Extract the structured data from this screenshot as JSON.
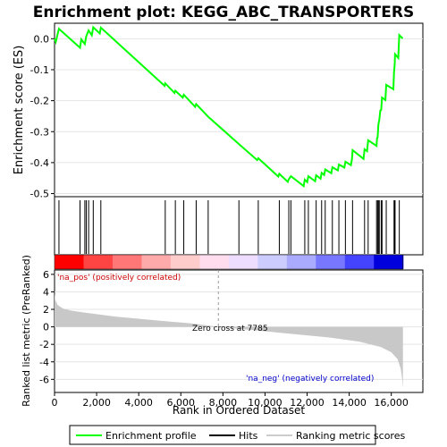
{
  "chart_data": {
    "type": "line",
    "title": "Enrichment plot: KEGG_ABC_TRANSPORTERS",
    "es_panel": {
      "ylabel": "Enrichment score (ES)",
      "yticks": [
        "0.0",
        "-0.1",
        "-0.2",
        "-0.3",
        "-0.4",
        "-0.5"
      ],
      "ylim": [
        -0.51,
        0.05
      ],
      "series_color": "#00ff00",
      "points": [
        [
          0,
          0
        ],
        [
          60,
          -0.01
        ],
        [
          210,
          0.032
        ],
        [
          1210,
          -0.029
        ],
        [
          1270,
          -0.002
        ],
        [
          1440,
          -0.017
        ],
        [
          1510,
          0.008
        ],
        [
          1620,
          0.027
        ],
        [
          1770,
          0.011
        ],
        [
          1840,
          0.037
        ],
        [
          2150,
          0.017
        ],
        [
          2200,
          0.036
        ],
        [
          5230,
          -0.152
        ],
        [
          5260,
          -0.144
        ],
        [
          5700,
          -0.175
        ],
        [
          5740,
          -0.168
        ],
        [
          6090,
          -0.19
        ],
        [
          6140,
          -0.181
        ],
        [
          6680,
          -0.22
        ],
        [
          6730,
          -0.211
        ],
        [
          7300,
          -0.252
        ],
        [
          8760,
          -0.34
        ],
        [
          9630,
          -0.392
        ],
        [
          9680,
          -0.386
        ],
        [
          10630,
          -0.445
        ],
        [
          10680,
          -0.436
        ],
        [
          11080,
          -0.462
        ],
        [
          11130,
          -0.454
        ],
        [
          11230,
          -0.444
        ],
        [
          11840,
          -0.476
        ],
        [
          11890,
          -0.455
        ],
        [
          12010,
          -0.463
        ],
        [
          12060,
          -0.444
        ],
        [
          12380,
          -0.46
        ],
        [
          12430,
          -0.441
        ],
        [
          12640,
          -0.452
        ],
        [
          12690,
          -0.433
        ],
        [
          12810,
          -0.44
        ],
        [
          12860,
          -0.422
        ],
        [
          13150,
          -0.434
        ],
        [
          13200,
          -0.415
        ],
        [
          13460,
          -0.425
        ],
        [
          13510,
          -0.406
        ],
        [
          13770,
          -0.416
        ],
        [
          13820,
          -0.397
        ],
        [
          14080,
          -0.408
        ],
        [
          14130,
          -0.389
        ],
        [
          14160,
          -0.36
        ],
        [
          14680,
          -0.388
        ],
        [
          14730,
          -0.357
        ],
        [
          14850,
          -0.363
        ],
        [
          14900,
          -0.328
        ],
        [
          15300,
          -0.346
        ],
        [
          15320,
          -0.322
        ],
        [
          15350,
          -0.318
        ],
        [
          15390,
          -0.276
        ],
        [
          15430,
          -0.262
        ],
        [
          15480,
          -0.232
        ],
        [
          15520,
          -0.23
        ],
        [
          15560,
          -0.19
        ],
        [
          15720,
          -0.198
        ],
        [
          15760,
          -0.149
        ],
        [
          16100,
          -0.163
        ],
        [
          16130,
          -0.11
        ],
        [
          16160,
          -0.083
        ],
        [
          16180,
          -0.05
        ],
        [
          16330,
          -0.062
        ],
        [
          16380,
          0.012
        ],
        [
          16540,
          0.001
        ]
      ]
    },
    "hits_panel": {
      "ranks": [
        210,
        1210,
        1440,
        1510,
        1620,
        1840,
        2200,
        5260,
        5740,
        6140,
        6730,
        7300,
        8760,
        9680,
        10680,
        11130,
        11230,
        11890,
        12060,
        12430,
        12690,
        12860,
        13200,
        13510,
        13820,
        14160,
        14730,
        14900,
        15300,
        15350,
        15390,
        15430,
        15520,
        15560,
        15760,
        16130,
        16160,
        16180,
        16380
      ]
    },
    "ranking_panel": {
      "ylabel": "Ranked list metric (PreRanked)",
      "yticks": [
        "6",
        "4",
        "2",
        "0",
        "-2",
        "-4",
        "-6"
      ],
      "ylim": [
        -7.5,
        6.5
      ],
      "pos_label": "'na_pos' (positively correlated)",
      "neg_label": "'na_neg' (negatively correlated)",
      "zero_cross_label": "Zero cross at 7785",
      "zero_cross": 7785,
      "metric_points": [
        [
          0,
          4.0
        ],
        [
          30,
          3.1
        ],
        [
          150,
          2.5
        ],
        [
          400,
          2.1
        ],
        [
          800,
          1.85
        ],
        [
          1500,
          1.6
        ],
        [
          3000,
          1.15
        ],
        [
          5000,
          0.7
        ],
        [
          6500,
          0.4
        ],
        [
          7785,
          0
        ],
        [
          9000,
          -0.28
        ],
        [
          11000,
          -0.75
        ],
        [
          13000,
          -1.2
        ],
        [
          14500,
          -1.7
        ],
        [
          15500,
          -2.3
        ],
        [
          16000,
          -2.9
        ],
        [
          16300,
          -3.7
        ],
        [
          16450,
          -4.8
        ],
        [
          16520,
          -6.0
        ],
        [
          16554,
          -7.0
        ]
      ]
    },
    "xaxis": {
      "label": "Rank in Ordered Dataset",
      "ticks": [
        0,
        2000,
        4000,
        6000,
        8000,
        10000,
        12000,
        14000,
        16000
      ],
      "ticklabels": [
        "0",
        "2,000",
        "4,000",
        "6,000",
        "8,000",
        "10,000",
        "12,000",
        "14,000",
        "16,000"
      ],
      "xlim": [
        0,
        17500
      ],
      "n_genes": 16554
    },
    "legend": {
      "position": "bottom",
      "items": [
        {
          "label": "Enrichment profile",
          "color": "#00ff00",
          "style": "line"
        },
        {
          "label": "Hits",
          "color": "#000000",
          "style": "line"
        },
        {
          "label": "Ranking metric scores",
          "color": "#cccccc",
          "style": "line"
        }
      ]
    },
    "heatmap_colors": [
      "#ff0000",
      "#ff4444",
      "#ff7777",
      "#ffaaaa",
      "#ffcccc",
      "#ffddee",
      "#eeddff",
      "#ccccff",
      "#aaaaff",
      "#7777ff",
      "#4444ff",
      "#0000dd"
    ]
  }
}
